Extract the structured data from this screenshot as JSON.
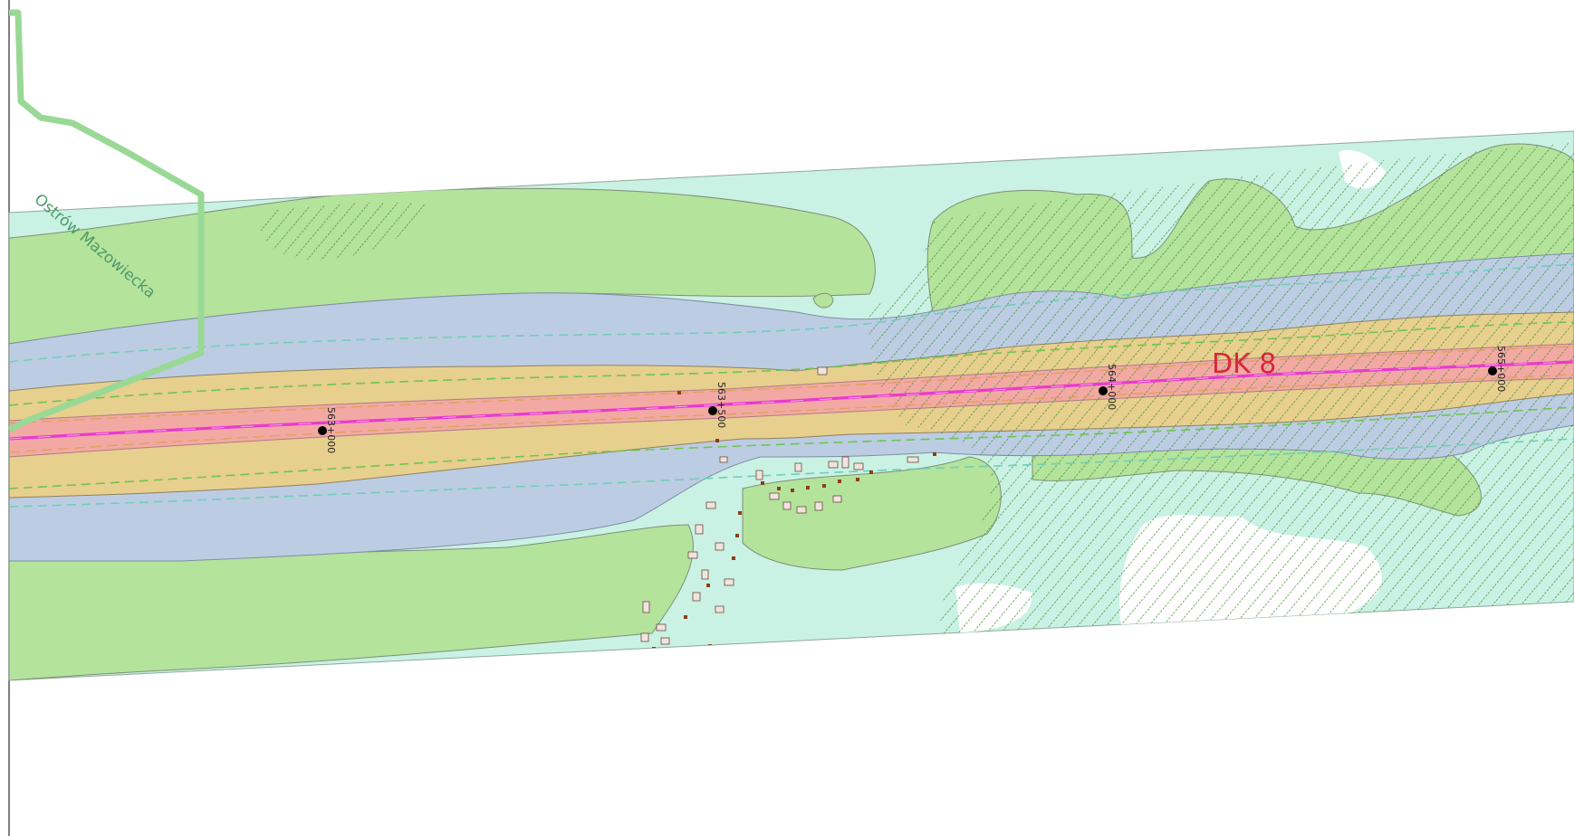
{
  "map": {
    "road_label": "DK 8",
    "boundary_label": "Ostrów Mazowiecka",
    "chainage_markers": [
      {
        "label": "563+000"
      },
      {
        "label": "563+500"
      },
      {
        "label": "564+000"
      },
      {
        "label": "565+000"
      }
    ]
  },
  "colors": {
    "road_axis": "#e83ad0",
    "road_label": "#d8273b",
    "boundary": "#9ad896",
    "boundary_label": "#4e9a6a",
    "zone_green": "#b4e39c",
    "zone_mint": "#c9f2e4",
    "zone_blue": "#bccde3",
    "zone_tan": "#e7cf8e",
    "zone_pink": "#f3a9a3",
    "hatch": "#3d8a2d",
    "building_fill": "#f1e3e0",
    "building_dark": "#8b3f15"
  }
}
